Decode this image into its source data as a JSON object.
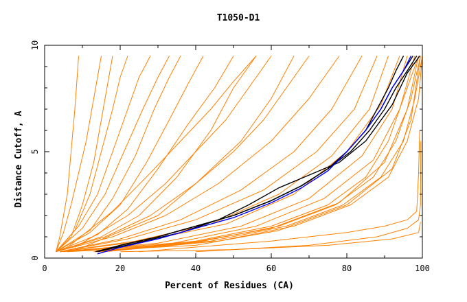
{
  "chart_data": {
    "type": "line",
    "title": "T1050-D1",
    "xlabel": "Percent of Residues (CA)",
    "ylabel": "Distance Cutoff, A",
    "xlim": [
      0,
      100
    ],
    "ylim": [
      0,
      10
    ],
    "x_ticks": [
      0,
      20,
      40,
      60,
      80,
      100
    ],
    "y_ticks": [
      0,
      5,
      10
    ],
    "grid": false,
    "colors": {
      "orange": "#ff8000",
      "black": "#000000",
      "blue": "#0000ff"
    },
    "series": [
      {
        "color": "orange",
        "x": [
          3,
          4,
          5,
          6,
          7,
          8,
          9
        ],
        "y": [
          0.3,
          1,
          2,
          3,
          5,
          7,
          9.5
        ]
      },
      {
        "color": "orange",
        "x": [
          3,
          5,
          7,
          9,
          11,
          13,
          15
        ],
        "y": [
          0.3,
          1.2,
          2.5,
          4,
          5.5,
          7.5,
          9.5
        ]
      },
      {
        "color": "orange",
        "x": [
          3,
          7,
          10,
          13,
          15,
          17,
          18
        ],
        "y": [
          0.3,
          1,
          2.5,
          4.5,
          6.5,
          8.5,
          9.5
        ]
      },
      {
        "color": "orange",
        "x": [
          3,
          8,
          12,
          15,
          18,
          20,
          22
        ],
        "y": [
          0.3,
          1.3,
          3,
          5,
          7,
          8.5,
          9.5
        ]
      },
      {
        "color": "orange",
        "x": [
          3,
          9,
          14,
          18,
          22,
          25,
          28
        ],
        "y": [
          0.3,
          1.5,
          3,
          5,
          7,
          8.5,
          9.5
        ]
      },
      {
        "color": "orange",
        "x": [
          3,
          10,
          16,
          21,
          26,
          30,
          33
        ],
        "y": [
          0.3,
          1.4,
          3,
          5,
          7,
          8.5,
          9.5
        ]
      },
      {
        "color": "orange",
        "x": [
          3,
          12,
          18,
          24,
          29,
          33,
          36
        ],
        "y": [
          0.3,
          1.3,
          2.8,
          4.8,
          7,
          8.5,
          9.5
        ]
      },
      {
        "color": "orange",
        "x": [
          3,
          12,
          20,
          27,
          33,
          38,
          42
        ],
        "y": [
          0.3,
          1.2,
          2.5,
          4.5,
          6.5,
          8.2,
          9.5
        ]
      },
      {
        "color": "orange",
        "x": [
          3,
          14,
          22,
          30,
          38,
          45,
          50
        ],
        "y": [
          0.3,
          1.1,
          2.3,
          4.2,
          6.3,
          8,
          9.5
        ]
      },
      {
        "color": "orange",
        "x": [
          3,
          15,
          25,
          35,
          44,
          50,
          56
        ],
        "y": [
          0.3,
          1,
          2,
          3.8,
          6,
          8,
          9.5
        ]
      },
      {
        "color": "orange",
        "x": [
          3,
          16,
          28,
          40,
          52,
          60,
          66
        ],
        "y": [
          0.3,
          1,
          2,
          3.5,
          5.5,
          7.5,
          9.5
        ]
      },
      {
        "color": "orange",
        "x": [
          3,
          18,
          32,
          46,
          60,
          70,
          78
        ],
        "y": [
          0.3,
          1,
          2,
          3.5,
          5.5,
          7.5,
          9.5
        ]
      },
      {
        "color": "orange",
        "x": [
          4,
          20,
          36,
          52,
          66,
          76,
          84
        ],
        "y": [
          0.3,
          0.9,
          1.8,
          3.2,
          5,
          7,
          9.5
        ]
      },
      {
        "color": "orange",
        "x": [
          4,
          22,
          40,
          58,
          72,
          82,
          88
        ],
        "y": [
          0.3,
          0.9,
          1.8,
          3.2,
          5,
          7,
          9.5
        ]
      },
      {
        "color": "orange",
        "x": [
          4,
          24,
          44,
          62,
          76,
          86,
          91
        ],
        "y": [
          0.3,
          0.8,
          1.6,
          3,
          4.8,
          7,
          9.5
        ]
      },
      {
        "color": "orange",
        "x": [
          4,
          26,
          48,
          66,
          80,
          89,
          94
        ],
        "y": [
          0.3,
          0.8,
          1.6,
          3,
          5,
          7.2,
          9.5
        ]
      },
      {
        "color": "orange",
        "x": [
          4,
          30,
          52,
          70,
          84,
          92,
          96
        ],
        "y": [
          0.3,
          0.7,
          1.5,
          2.8,
          4.8,
          7,
          9.5
        ]
      },
      {
        "color": "orange",
        "x": [
          4,
          34,
          56,
          74,
          87,
          94,
          98
        ],
        "y": [
          0.3,
          0.7,
          1.5,
          2.8,
          4.6,
          7,
          9.5
        ]
      },
      {
        "color": "orange",
        "x": [
          5,
          38,
          60,
          78,
          90,
          96,
          99
        ],
        "y": [
          0.3,
          0.7,
          1.4,
          2.6,
          4.5,
          7,
          9.5
        ]
      },
      {
        "color": "orange",
        "x": [
          6,
          40,
          62,
          80,
          92,
          97,
          99.5
        ],
        "y": [
          0.3,
          0.6,
          1.3,
          2.5,
          4.2,
          6.5,
          9.5
        ]
      },
      {
        "color": "orange",
        "x": [
          13,
          40,
          60,
          75,
          85,
          91,
          95,
          99
        ],
        "y": [
          0.3,
          0.8,
          1.5,
          2.5,
          3.8,
          5.5,
          7.5,
          9.5
        ]
      },
      {
        "color": "orange",
        "x": [
          14,
          42,
          62,
          77,
          87,
          93,
          97,
          99.5
        ],
        "y": [
          0.3,
          0.8,
          1.5,
          2.5,
          3.8,
          5.5,
          7.5,
          9.5
        ]
      },
      {
        "color": "orange",
        "x": [
          15,
          44,
          64,
          79,
          89,
          95,
          98,
          100
        ],
        "y": [
          0.3,
          0.8,
          1.5,
          2.5,
          3.8,
          5.5,
          7.5,
          9.5
        ]
      },
      {
        "color": "orange",
        "x": [
          16,
          46,
          66,
          81,
          91,
          96,
          99,
          100
        ],
        "y": [
          0.3,
          0.8,
          1.5,
          2.5,
          3.8,
          5.5,
          7.5,
          9.5
        ]
      },
      {
        "color": "orange",
        "x": [
          10,
          30,
          40,
          50,
          58,
          64,
          70
        ],
        "y": [
          0.5,
          2,
          3.5,
          5,
          6.5,
          8,
          9.5
        ]
      },
      {
        "color": "orange",
        "x": [
          8,
          22,
          32,
          40,
          48,
          54,
          60
        ],
        "y": [
          0.5,
          2,
          3.5,
          5,
          6.5,
          8,
          9.5
        ]
      },
      {
        "color": "orange",
        "x": [
          6,
          18,
          28,
          36,
          44,
          50,
          56
        ],
        "y": [
          0.5,
          2.2,
          4,
          5.5,
          7,
          8.3,
          9.5
        ]
      },
      {
        "color": "orange",
        "x": [
          25,
          60,
          80,
          90,
          96,
          98.5,
          99,
          99.3
        ],
        "y": [
          0.3,
          0.8,
          1.2,
          1.5,
          1.8,
          2.2,
          4,
          6
        ]
      },
      {
        "color": "orange",
        "x": [
          40,
          70,
          88,
          96,
          99,
          99.5,
          99.6
        ],
        "y": [
          0.3,
          0.6,
          1,
          1.4,
          1.8,
          2.5,
          5.5
        ]
      },
      {
        "color": "orange",
        "x": [
          20,
          50,
          75,
          92,
          99,
          99.5
        ],
        "y": [
          0.3,
          0.4,
          0.6,
          0.9,
          1.2,
          1.7
        ]
      },
      {
        "color": "black",
        "x": [
          13.5,
          20,
          30,
          40,
          50,
          60,
          68,
          75,
          80,
          85,
          88,
          91,
          93,
          95
        ],
        "y": [
          0.3,
          0.6,
          1,
          1.5,
          2,
          2.7,
          3.4,
          4.2,
          5,
          6,
          7,
          8,
          8.8,
          9.5
        ]
      },
      {
        "color": "black",
        "x": [
          14,
          20,
          30,
          40,
          50,
          60,
          68,
          75,
          80,
          85,
          89,
          92,
          95,
          97.5
        ],
        "y": [
          0.3,
          0.6,
          1,
          1.5,
          2,
          2.7,
          3.4,
          4.2,
          5,
          6,
          7,
          8,
          8.8,
          9.5
        ]
      },
      {
        "color": "black",
        "x": [
          14,
          20,
          30,
          40,
          50,
          60,
          68,
          75,
          81,
          86,
          90,
          93,
          96,
          98.5
        ],
        "y": [
          0.3,
          0.6,
          1,
          1.5,
          2,
          2.7,
          3.4,
          4.2,
          5,
          6,
          7,
          8,
          8.8,
          9.5
        ]
      },
      {
        "color": "black",
        "x": [
          14,
          24,
          36,
          46,
          54,
          62,
          70,
          78,
          85,
          92,
          96,
          98.5,
          99.3
        ],
        "y": [
          0.3,
          0.7,
          1.2,
          1.8,
          2.5,
          3.3,
          3.9,
          4.5,
          5.5,
          7.2,
          8.7,
          9.3,
          9.5
        ]
      },
      {
        "color": "blue",
        "x": [
          14,
          20,
          30,
          40,
          50,
          60,
          68,
          75,
          80,
          85,
          89,
          92,
          95,
          97
        ],
        "y": [
          0.2,
          0.5,
          0.9,
          1.4,
          1.9,
          2.6,
          3.3,
          4.1,
          5,
          6,
          7,
          8,
          8.8,
          9.5
        ]
      }
    ]
  }
}
